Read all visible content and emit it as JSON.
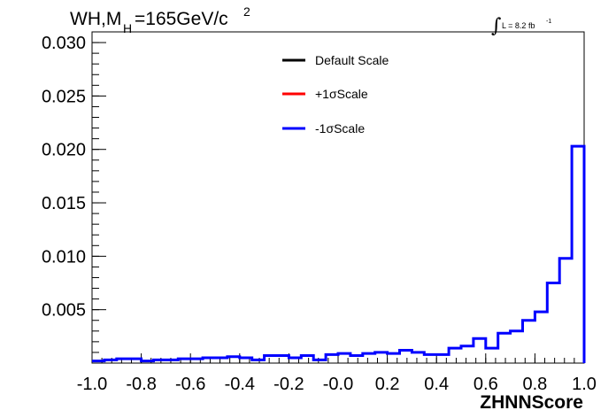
{
  "chart_data": {
    "type": "line",
    "title_main": "WH,M",
    "title_sub": "H",
    "title_rest": "=165GeV/c",
    "title_sup": "2",
    "luminosity_label": "L = 8.2 fb",
    "luminosity_sup": "-1",
    "xlabel": "ZHNNScore",
    "ylabel": "",
    "xlim": [
      -1.0,
      1.0
    ],
    "ylim": [
      0.0,
      0.031
    ],
    "x_ticks": [
      "-1.0",
      "-0.8",
      "-0.6",
      "-0.4",
      "-0.2",
      "-0.0",
      "0.2",
      "0.4",
      "0.6",
      "0.8",
      "1.0"
    ],
    "y_ticks": [
      "0.005",
      "0.010",
      "0.015",
      "0.020",
      "0.025",
      "0.030"
    ],
    "legend": {
      "position": "top-center",
      "entries": [
        {
          "label": "Default Scale",
          "color": "#000000"
        },
        {
          "label": "+1σScale",
          "color": "#ff0000"
        },
        {
          "label": "-1σScale",
          "color": "#0000ff"
        }
      ]
    },
    "bin_edges": [
      -1.0,
      -0.95,
      -0.9,
      -0.85,
      -0.8,
      -0.75,
      -0.7,
      -0.65,
      -0.6,
      -0.55,
      -0.5,
      -0.45,
      -0.4,
      -0.35,
      -0.3,
      -0.25,
      -0.2,
      -0.15,
      -0.1,
      -0.05,
      0.0,
      0.05,
      0.1,
      0.15,
      0.2,
      0.25,
      0.3,
      0.35,
      0.4,
      0.45,
      0.5,
      0.55,
      0.6,
      0.65,
      0.7,
      0.75,
      0.8,
      0.85,
      0.9,
      0.95,
      1.0
    ],
    "series": [
      {
        "name": "-1σScale",
        "color": "#0000ff",
        "values": [
          0.0002,
          0.0003,
          0.0004,
          0.0004,
          0.0002,
          0.0003,
          0.0003,
          0.0004,
          0.0004,
          0.0005,
          0.0005,
          0.0006,
          0.0005,
          0.0003,
          0.0007,
          0.0007,
          0.0005,
          0.0007,
          0.0003,
          0.0008,
          0.0009,
          0.0007,
          0.0009,
          0.001,
          0.0009,
          0.0012,
          0.001,
          0.0008,
          0.0008,
          0.0014,
          0.0016,
          0.0023,
          0.0014,
          0.0028,
          0.003,
          0.004,
          0.0048,
          0.0075,
          0.0098,
          0.0203
        ]
      }
    ],
    "grid": false
  }
}
